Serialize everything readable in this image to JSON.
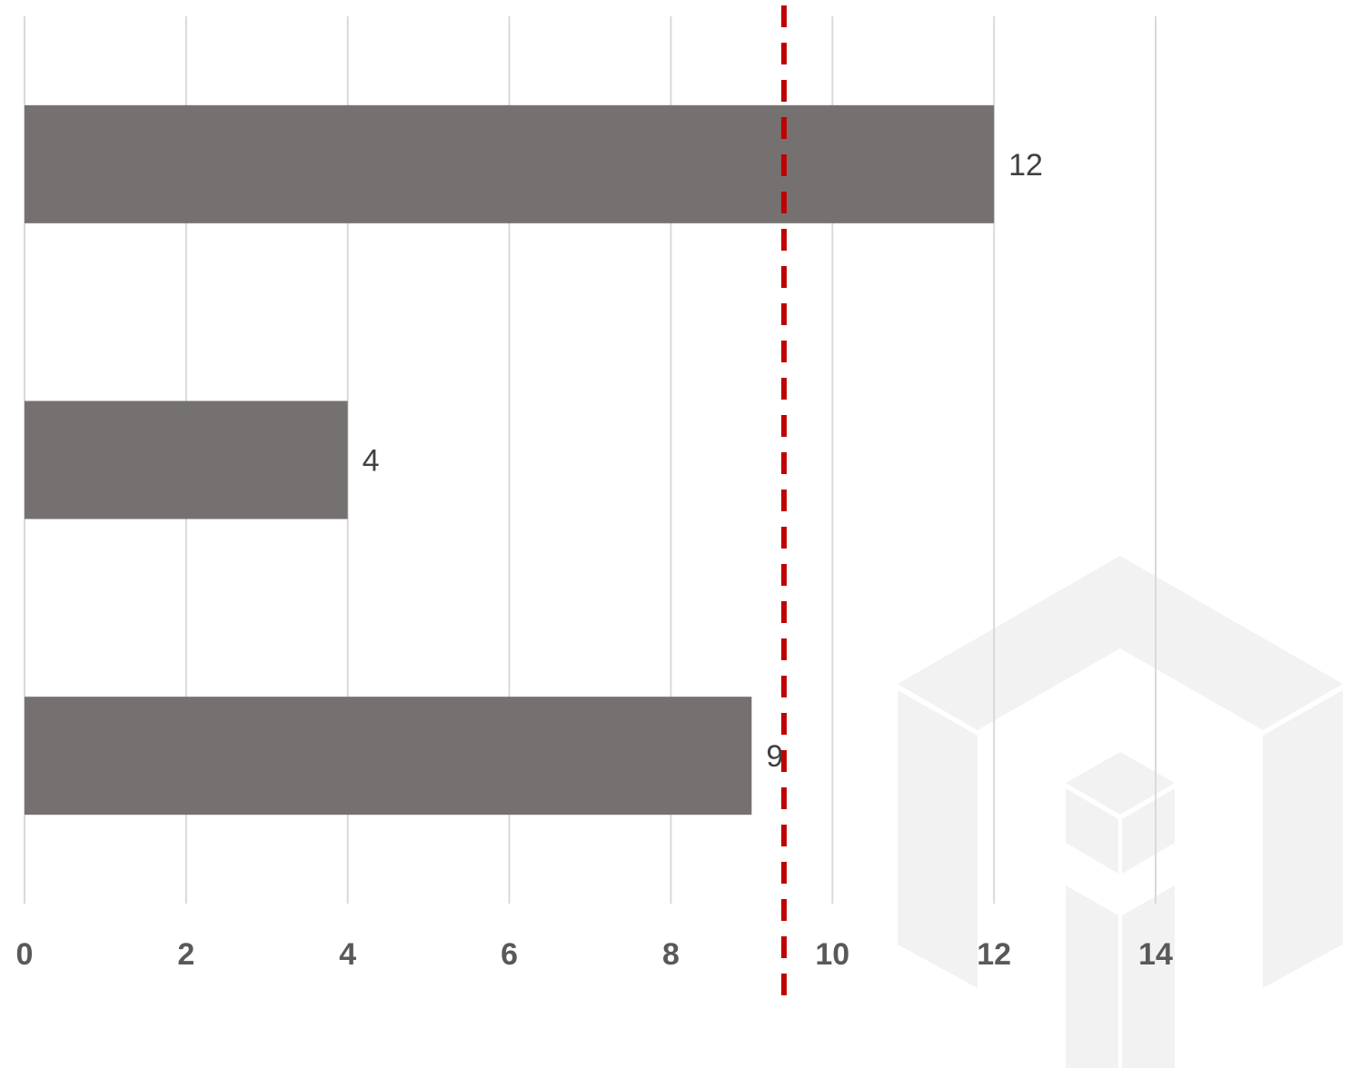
{
  "chart_data": {
    "type": "bar",
    "orientation": "horizontal",
    "categories": [
      "",
      "",
      ""
    ],
    "values": [
      12,
      4,
      9
    ],
    "data_labels": [
      "12",
      "4",
      "9"
    ],
    "xlim": [
      0,
      14
    ],
    "xticks": [
      0,
      2,
      4,
      6,
      8,
      10,
      12,
      14
    ],
    "xtick_labels": [
      "0",
      "2",
      "4",
      "6",
      "8",
      "10",
      "12",
      "14"
    ],
    "reference_line": {
      "value": 9.4,
      "style": "dashed",
      "color": "#c00000"
    },
    "grid": "vertical",
    "bar_color": "#767171",
    "grid_color": "#d9d9d9",
    "watermark": "logo"
  }
}
